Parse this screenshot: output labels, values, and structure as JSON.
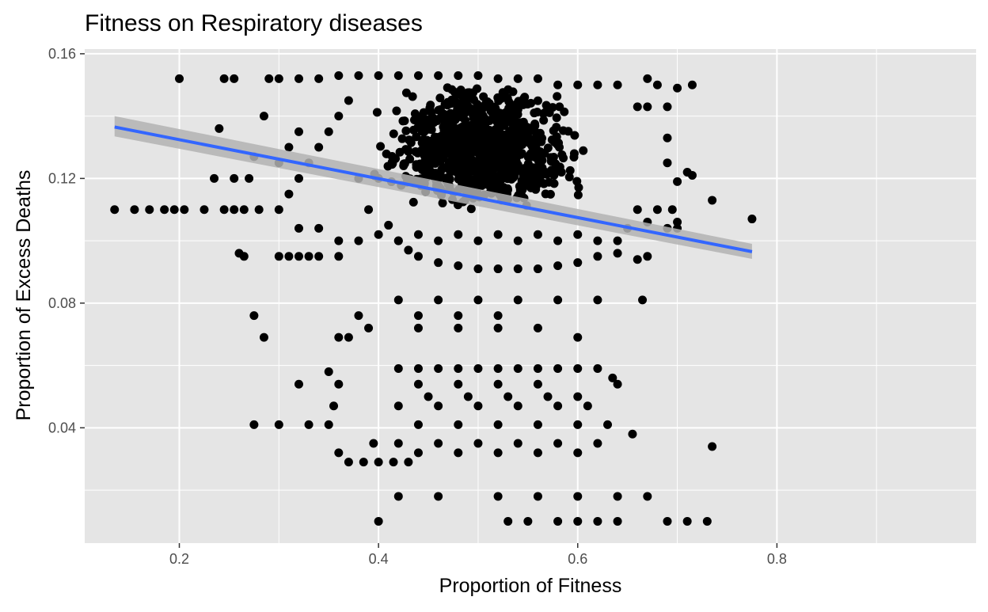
{
  "chart_data": {
    "type": "scatter",
    "title": "Fitness on Respiratory diseases",
    "xlabel": "Proportion of Fitness",
    "ylabel": "Proportion of Excess Deaths",
    "xlim": [
      0.105,
      1.0
    ],
    "ylim": [
      0.003,
      0.1615
    ],
    "x_ticks": [
      0.2,
      0.4,
      0.6,
      0.8
    ],
    "x_tick_labels": [
      "0.2",
      "0.4",
      "0.6",
      "0.8"
    ],
    "y_ticks": [
      0.04,
      0.08,
      0.12,
      0.16
    ],
    "y_tick_labels": [
      "0.04",
      "0.08",
      "0.12",
      "0.16"
    ],
    "grid": true,
    "legend": "none",
    "colors": {
      "panel_background": "#e5e5e5",
      "grid": "#ffffff",
      "points": "#000000",
      "fit_line": "#3366ff",
      "confidence_band": "#b3b3b3"
    },
    "series": [
      {
        "type": "scatter",
        "points": [
          [
            0.135,
            0.11
          ],
          [
            0.155,
            0.11
          ],
          [
            0.17,
            0.11
          ],
          [
            0.185,
            0.11
          ],
          [
            0.195,
            0.11
          ],
          [
            0.205,
            0.11
          ],
          [
            0.225,
            0.11
          ],
          [
            0.245,
            0.11
          ],
          [
            0.2,
            0.152
          ],
          [
            0.245,
            0.152
          ],
          [
            0.255,
            0.152
          ],
          [
            0.24,
            0.136
          ],
          [
            0.235,
            0.12
          ],
          [
            0.255,
            0.12
          ],
          [
            0.27,
            0.12
          ],
          [
            0.255,
            0.11
          ],
          [
            0.265,
            0.11
          ],
          [
            0.28,
            0.11
          ],
          [
            0.26,
            0.096
          ],
          [
            0.265,
            0.095
          ],
          [
            0.275,
            0.127
          ],
          [
            0.285,
            0.14
          ],
          [
            0.3,
            0.095
          ],
          [
            0.31,
            0.095
          ],
          [
            0.32,
            0.095
          ],
          [
            0.33,
            0.095
          ],
          [
            0.34,
            0.095
          ],
          [
            0.36,
            0.095
          ],
          [
            0.275,
            0.076
          ],
          [
            0.285,
            0.069
          ],
          [
            0.275,
            0.041
          ],
          [
            0.3,
            0.041
          ],
          [
            0.32,
            0.054
          ],
          [
            0.33,
            0.041
          ],
          [
            0.35,
            0.041
          ],
          [
            0.36,
            0.069
          ],
          [
            0.37,
            0.069
          ],
          [
            0.38,
            0.076
          ],
          [
            0.39,
            0.072
          ],
          [
            0.35,
            0.058
          ],
          [
            0.36,
            0.054
          ],
          [
            0.355,
            0.047
          ],
          [
            0.36,
            0.032
          ],
          [
            0.37,
            0.029
          ],
          [
            0.385,
            0.029
          ],
          [
            0.395,
            0.035
          ],
          [
            0.4,
            0.029
          ],
          [
            0.415,
            0.029
          ],
          [
            0.43,
            0.029
          ],
          [
            0.42,
            0.018
          ],
          [
            0.46,
            0.018
          ],
          [
            0.52,
            0.018
          ],
          [
            0.56,
            0.018
          ],
          [
            0.6,
            0.018
          ],
          [
            0.64,
            0.018
          ],
          [
            0.67,
            0.018
          ],
          [
            0.4,
            0.01
          ],
          [
            0.53,
            0.01
          ],
          [
            0.55,
            0.01
          ],
          [
            0.58,
            0.01
          ],
          [
            0.6,
            0.01
          ],
          [
            0.62,
            0.01
          ],
          [
            0.64,
            0.01
          ],
          [
            0.69,
            0.01
          ],
          [
            0.71,
            0.01
          ],
          [
            0.73,
            0.01
          ],
          [
            0.735,
            0.034
          ],
          [
            0.655,
            0.038
          ],
          [
            0.64,
            0.054
          ],
          [
            0.635,
            0.056
          ],
          [
            0.62,
            0.059
          ],
          [
            0.6,
            0.059
          ],
          [
            0.58,
            0.059
          ],
          [
            0.56,
            0.059
          ],
          [
            0.54,
            0.059
          ],
          [
            0.52,
            0.059
          ],
          [
            0.5,
            0.059
          ],
          [
            0.48,
            0.059
          ],
          [
            0.46,
            0.059
          ],
          [
            0.44,
            0.059
          ],
          [
            0.42,
            0.059
          ],
          [
            0.6,
            0.069
          ],
          [
            0.56,
            0.072
          ],
          [
            0.52,
            0.072
          ],
          [
            0.48,
            0.072
          ],
          [
            0.44,
            0.072
          ],
          [
            0.62,
            0.081
          ],
          [
            0.58,
            0.081
          ],
          [
            0.54,
            0.081
          ],
          [
            0.5,
            0.081
          ],
          [
            0.46,
            0.081
          ],
          [
            0.42,
            0.081
          ],
          [
            0.665,
            0.081
          ],
          [
            0.44,
            0.076
          ],
          [
            0.48,
            0.076
          ],
          [
            0.52,
            0.076
          ],
          [
            0.42,
            0.047
          ],
          [
            0.46,
            0.047
          ],
          [
            0.5,
            0.047
          ],
          [
            0.54,
            0.047
          ],
          [
            0.58,
            0.047
          ],
          [
            0.61,
            0.047
          ],
          [
            0.44,
            0.041
          ],
          [
            0.48,
            0.041
          ],
          [
            0.52,
            0.041
          ],
          [
            0.56,
            0.041
          ],
          [
            0.6,
            0.041
          ],
          [
            0.63,
            0.041
          ],
          [
            0.42,
            0.035
          ],
          [
            0.46,
            0.035
          ],
          [
            0.5,
            0.035
          ],
          [
            0.54,
            0.035
          ],
          [
            0.58,
            0.035
          ],
          [
            0.62,
            0.035
          ],
          [
            0.44,
            0.032
          ],
          [
            0.48,
            0.032
          ],
          [
            0.52,
            0.032
          ],
          [
            0.56,
            0.032
          ],
          [
            0.6,
            0.032
          ],
          [
            0.44,
            0.054
          ],
          [
            0.48,
            0.054
          ],
          [
            0.52,
            0.054
          ],
          [
            0.56,
            0.054
          ],
          [
            0.45,
            0.05
          ],
          [
            0.49,
            0.05
          ],
          [
            0.53,
            0.05
          ],
          [
            0.57,
            0.05
          ],
          [
            0.6,
            0.05
          ],
          [
            0.38,
            0.12
          ],
          [
            0.4,
            0.12
          ],
          [
            0.39,
            0.11
          ],
          [
            0.41,
            0.105
          ],
          [
            0.42,
            0.1
          ],
          [
            0.43,
            0.097
          ],
          [
            0.44,
            0.095
          ],
          [
            0.46,
            0.093
          ],
          [
            0.48,
            0.092
          ],
          [
            0.5,
            0.091
          ],
          [
            0.52,
            0.091
          ],
          [
            0.54,
            0.091
          ],
          [
            0.56,
            0.091
          ],
          [
            0.58,
            0.092
          ],
          [
            0.6,
            0.093
          ],
          [
            0.62,
            0.095
          ],
          [
            0.64,
            0.096
          ],
          [
            0.66,
            0.094
          ],
          [
            0.67,
            0.095
          ],
          [
            0.67,
            0.106
          ],
          [
            0.69,
            0.104
          ],
          [
            0.7,
            0.106
          ],
          [
            0.695,
            0.11
          ],
          [
            0.71,
            0.122
          ],
          [
            0.715,
            0.121
          ],
          [
            0.7,
            0.119
          ],
          [
            0.69,
            0.125
          ],
          [
            0.69,
            0.133
          ],
          [
            0.7,
            0.149
          ],
          [
            0.715,
            0.15
          ],
          [
            0.68,
            0.15
          ],
          [
            0.67,
            0.152
          ],
          [
            0.69,
            0.143
          ],
          [
            0.67,
            0.143
          ],
          [
            0.66,
            0.143
          ],
          [
            0.64,
            0.15
          ],
          [
            0.62,
            0.15
          ],
          [
            0.6,
            0.15
          ],
          [
            0.58,
            0.15
          ],
          [
            0.56,
            0.152
          ],
          [
            0.54,
            0.152
          ],
          [
            0.52,
            0.152
          ],
          [
            0.5,
            0.153
          ],
          [
            0.48,
            0.153
          ],
          [
            0.46,
            0.153
          ],
          [
            0.44,
            0.153
          ],
          [
            0.42,
            0.153
          ],
          [
            0.4,
            0.153
          ],
          [
            0.38,
            0.153
          ],
          [
            0.36,
            0.153
          ],
          [
            0.34,
            0.152
          ],
          [
            0.32,
            0.152
          ],
          [
            0.3,
            0.152
          ],
          [
            0.29,
            0.152
          ],
          [
            0.735,
            0.113
          ],
          [
            0.775,
            0.107
          ],
          [
            0.7,
            0.104
          ],
          [
            0.68,
            0.11
          ],
          [
            0.66,
            0.11
          ],
          [
            0.65,
            0.104
          ],
          [
            0.64,
            0.1
          ],
          [
            0.62,
            0.1
          ],
          [
            0.6,
            0.102
          ],
          [
            0.58,
            0.1
          ],
          [
            0.56,
            0.102
          ],
          [
            0.54,
            0.1
          ],
          [
            0.52,
            0.102
          ],
          [
            0.5,
            0.1
          ],
          [
            0.48,
            0.102
          ],
          [
            0.46,
            0.1
          ],
          [
            0.44,
            0.102
          ],
          [
            0.42,
            0.1
          ],
          [
            0.4,
            0.102
          ],
          [
            0.38,
            0.1
          ],
          [
            0.36,
            0.1
          ],
          [
            0.34,
            0.104
          ],
          [
            0.32,
            0.104
          ],
          [
            0.3,
            0.11
          ],
          [
            0.31,
            0.115
          ],
          [
            0.32,
            0.12
          ],
          [
            0.33,
            0.125
          ],
          [
            0.34,
            0.13
          ],
          [
            0.35,
            0.135
          ],
          [
            0.36,
            0.14
          ],
          [
            0.37,
            0.145
          ],
          [
            0.3,
            0.125
          ],
          [
            0.31,
            0.13
          ],
          [
            0.32,
            0.135
          ]
        ],
        "dense_cluster": {
          "x_range": [
            0.38,
            0.62
          ],
          "y_range": [
            0.11,
            0.15
          ]
        }
      },
      {
        "type": "line",
        "method": "linear_fit",
        "x": [
          0.135,
          0.775
        ],
        "y": [
          0.1365,
          0.0965
        ],
        "band_lower": [
          0.1335,
          0.0942
        ],
        "band_upper": [
          0.14,
          0.099
        ]
      }
    ]
  }
}
